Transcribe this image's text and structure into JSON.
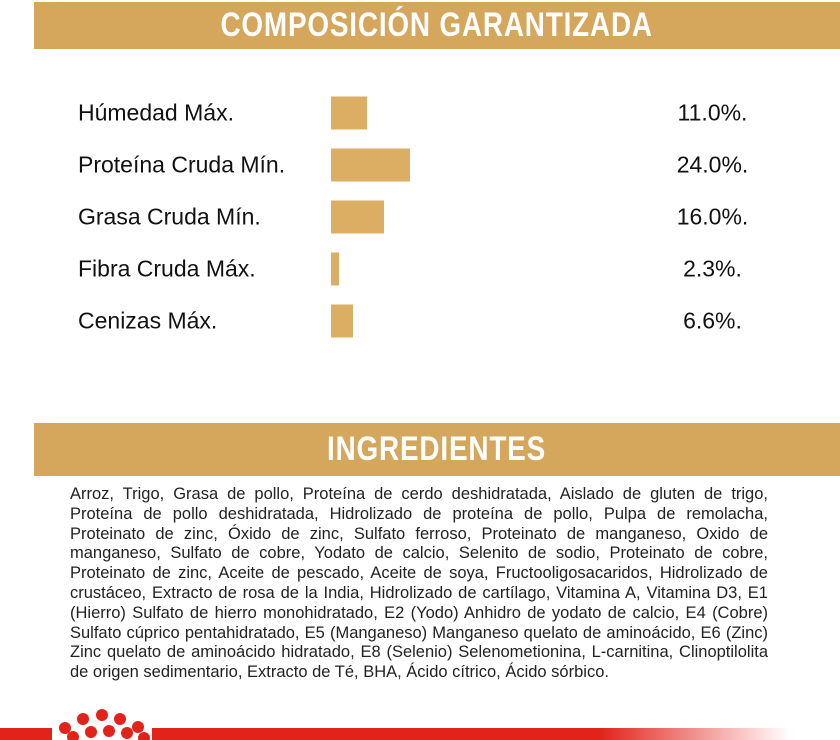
{
  "colors": {
    "banner_bg": "#D5A75D",
    "bar_fill": "#DBAE63",
    "brand_red": "#E2231A",
    "text_dark": "#111111",
    "banner_text": "#FFFFFF",
    "page_bg": "#FFFFFF"
  },
  "composition_section": {
    "title": "COMPOSICIÓN GARANTIZADA"
  },
  "chart_data": {
    "type": "bar",
    "orientation": "horizontal",
    "title": "COMPOSICIÓN GARANTIZADA",
    "categories": [
      "Húmedad Máx.",
      "Proteína Cruda Mín.",
      "Grasa Cruda Mín.",
      "Fibra Cruda Máx.",
      "Cenizas Máx."
    ],
    "values": [
      11.0,
      24.0,
      16.0,
      2.3,
      6.6
    ],
    "value_labels": [
      "11.0%.",
      "24.0%.",
      "16.0%.",
      "2.3%.",
      "6.6%."
    ],
    "unit": "%",
    "xlim": [
      0,
      24
    ],
    "grid": false,
    "legend": false,
    "bar_color": "#DBAE63"
  },
  "ingredients_section": {
    "title": "INGREDIENTES",
    "text": "Arroz, Trigo, Grasa de pollo, Proteína de cerdo deshidratada, Aislado de gluten de trigo, Proteína de pollo deshidratada, Hidrolizado de proteína de pollo, Pulpa de remolacha, Proteinato de zinc, Óxido de zinc, Sulfato ferroso, Proteinato de manganeso, Oxido de manganeso, Sulfato de cobre, Yodato de calcio, Selenito de sodio, Proteinato de cobre, Proteinato de zinc, Aceite de pescado, Aceite de soya, Fructooligosacaridos, Hidrolizado de crustáceo, Extracto de rosa de la India, Hidrolizado de cartílago, Vitamina A, Vitamina D3, E1 (Hierro) Sulfato de hierro monohidratado, E2 (Yodo) Anhidro de yodato de calcio, E4 (Cobre) Sulfato cúprico pentahidratado, E5 (Manganeso) Manganeso quelato de aminoácido, E6 (Zinc) Zinc quelato de aminoácido hidratado, E8 (Selenio) Selenometionina, L-carnitina, Clinoptilolita de origen sedimentario, Extracto de Té, BHA, Ácido cítrico, Ácido sórbico."
  },
  "footer": {
    "logo_icon": "royal-canin-dots-logo"
  }
}
